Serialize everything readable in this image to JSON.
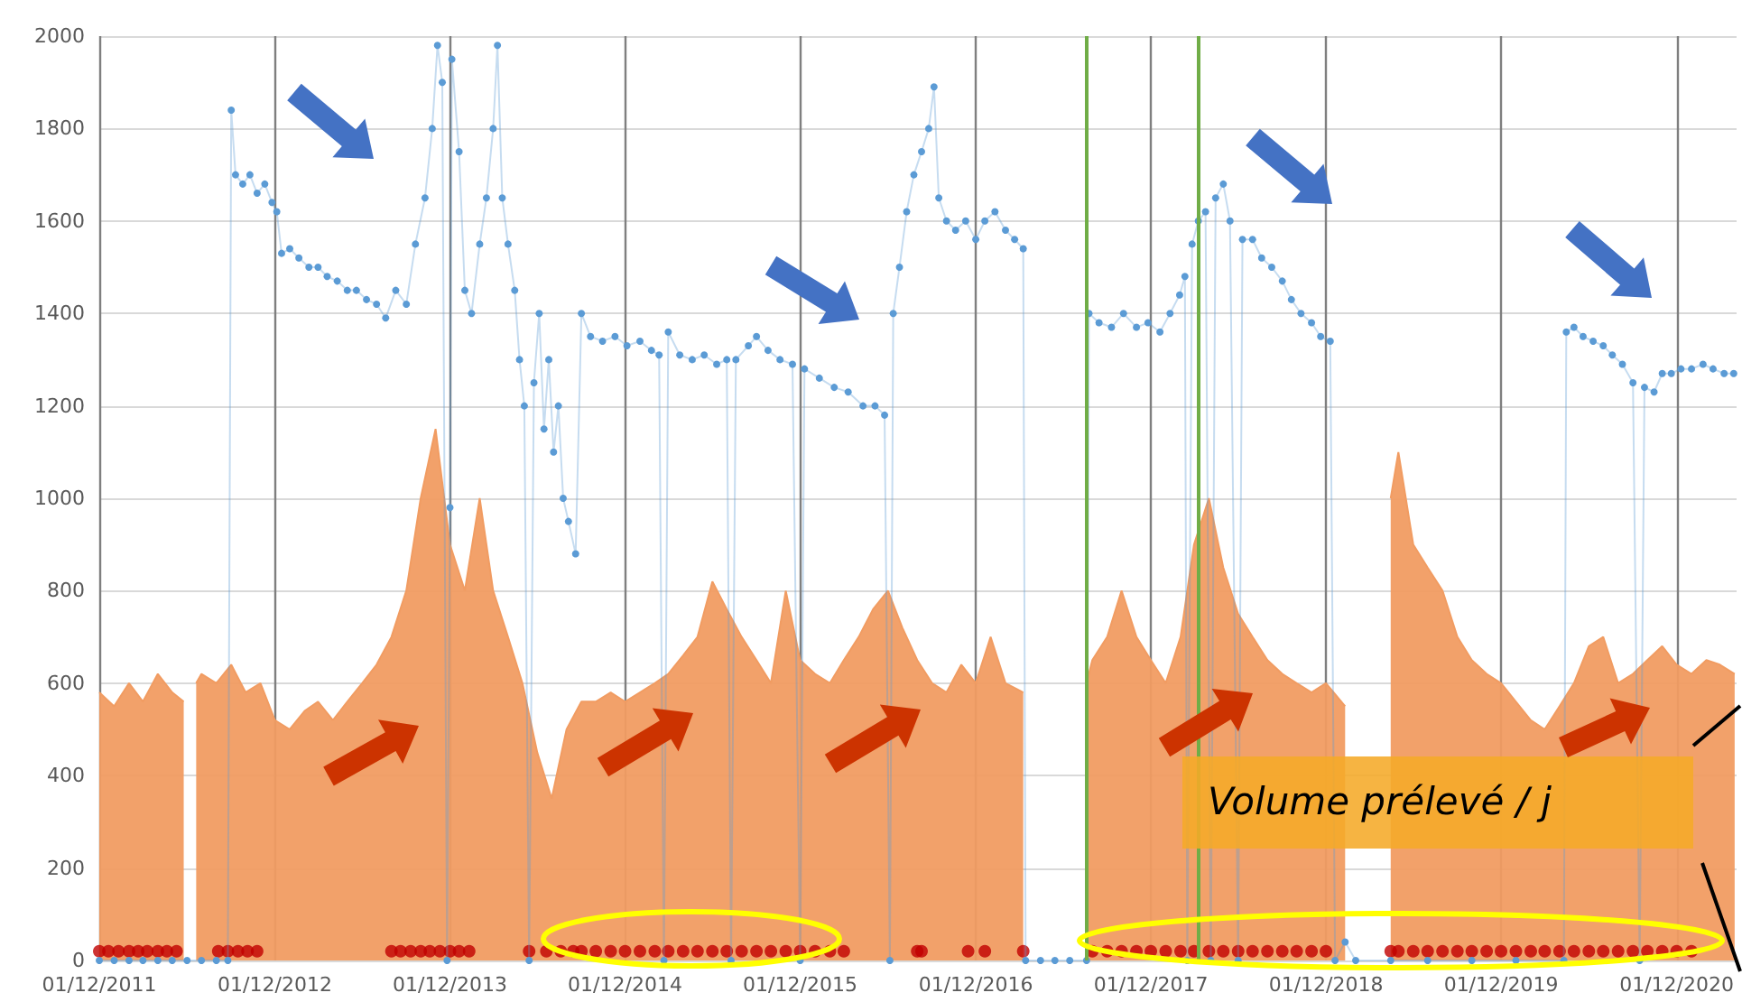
{
  "chart_data": {
    "type": "line",
    "annotations": [
      "Volume prélevé / j"
    ],
    "xlim": [
      "2011-12-01",
      "2021-04-05"
    ],
    "xticks": [
      {
        "value": "2011-12-01",
        "label": "01/12/2011"
      },
      {
        "value": "2012-12-01",
        "label": "01/12/2012"
      },
      {
        "value": "2013-12-01",
        "label": "01/12/2013"
      },
      {
        "value": "2014-12-01",
        "label": "01/12/2014"
      },
      {
        "value": "2015-12-01",
        "label": "01/12/2015"
      },
      {
        "value": "2016-12-01",
        "label": "01/12/2016"
      },
      {
        "value": "2017-12-01",
        "label": "01/12/2017"
      },
      {
        "value": "2018-12-01",
        "label": "01/12/2018"
      },
      {
        "value": "2019-12-01",
        "label": "01/12/2019"
      },
      {
        "value": "2020-12-01",
        "label": "01/12/2020"
      }
    ],
    "ylim": [
      0,
      2000
    ],
    "yticks": [
      0,
      200,
      400,
      600,
      800,
      1000,
      1200,
      1400,
      1600,
      1800,
      2000
    ],
    "grid": true,
    "marker": "circle",
    "ref_lines": [
      {
        "axis": "x",
        "value": "2017-07-20",
        "label": null,
        "color": "#70ad47"
      },
      {
        "axis": "x",
        "value": "2018-03-10",
        "label": null,
        "color": "#70ad47"
      }
    ],
    "series": [
      {
        "type": "area",
        "marker": "none",
        "color": "#f19c62",
        "x": [
          "2011-12-01",
          "2012-01-01",
          "2012-02-01",
          "2012-03-01",
          "2012-04-01",
          "2012-05-01",
          "2012-05-25",
          "2012-06-05",
          "2012-06-20",
          "2012-07-01",
          "2012-08-01",
          "2012-09-01",
          "2012-10-01",
          "2012-11-01",
          "2012-12-01",
          "2013-01-01",
          "2013-02-01",
          "2013-03-01",
          "2013-04-01",
          "2013-05-01",
          "2013-06-01",
          "2013-07-01",
          "2013-08-01",
          "2013-09-01",
          "2013-10-01",
          "2013-11-01",
          "2013-12-01",
          "2014-01-01",
          "2014-02-01",
          "2014-03-01",
          "2014-04-01",
          "2014-05-01",
          "2014-06-01",
          "2014-07-01",
          "2014-08-01",
          "2014-09-01",
          "2014-10-01",
          "2014-11-01",
          "2014-12-01",
          "2015-01-01",
          "2015-02-01",
          "2015-03-01",
          "2015-04-01",
          "2015-05-01",
          "2015-06-01",
          "2015-07-01",
          "2015-08-01",
          "2015-09-01",
          "2015-10-01",
          "2015-11-01",
          "2015-12-01",
          "2016-01-01",
          "2016-02-01",
          "2016-03-01",
          "2016-04-01",
          "2016-05-01",
          "2016-06-01",
          "2016-07-01",
          "2016-08-01",
          "2016-09-01",
          "2016-10-01",
          "2016-11-01",
          "2016-12-01",
          "2017-01-01",
          "2017-02-01",
          "2017-03-10",
          "2017-03-20",
          "2017-07-20",
          "2017-08-01",
          "2017-09-01",
          "2017-10-01",
          "2017-11-01",
          "2017-12-01",
          "2018-01-01",
          "2018-02-01",
          "2018-03-01",
          "2018-04-01",
          "2018-05-01",
          "2018-06-01",
          "2018-07-01",
          "2018-08-01",
          "2018-09-01",
          "2018-10-01",
          "2018-11-01",
          "2018-12-01",
          "2019-01-10",
          "2019-01-20",
          "2019-04-15",
          "2019-05-01",
          "2019-06-01",
          "2019-07-01",
          "2019-08-01",
          "2019-09-01",
          "2019-10-01",
          "2019-11-01",
          "2019-12-01",
          "2020-01-01",
          "2020-02-01",
          "2020-03-01",
          "2020-04-01",
          "2020-05-01",
          "2020-06-01",
          "2020-07-01",
          "2020-08-01",
          "2020-09-01",
          "2020-10-01",
          "2020-11-01",
          "2020-12-01",
          "2021-01-01",
          "2021-02-01",
          "2021-03-01",
          "2021-04-01"
        ],
        "values": [
          580,
          550,
          600,
          560,
          620,
          580,
          560,
          null,
          600,
          620,
          600,
          640,
          580,
          600,
          520,
          500,
          540,
          560,
          520,
          560,
          600,
          640,
          700,
          800,
          1000,
          1150,
          900,
          800,
          1000,
          800,
          700,
          600,
          450,
          350,
          500,
          560,
          560,
          580,
          560,
          580,
          600,
          620,
          660,
          700,
          820,
          760,
          700,
          650,
          600,
          800,
          650,
          620,
          600,
          650,
          700,
          760,
          800,
          720,
          650,
          600,
          580,
          640,
          600,
          700,
          600,
          580,
          null,
          600,
          650,
          700,
          800,
          700,
          650,
          600,
          700,
          900,
          1000,
          850,
          750,
          700,
          650,
          620,
          600,
          580,
          600,
          550,
          null,
          1000,
          1100,
          900,
          850,
          800,
          700,
          650,
          620,
          600,
          560,
          520,
          500,
          550,
          600,
          680,
          700,
          600,
          620,
          650,
          680,
          640,
          620,
          650,
          640,
          620
        ]
      },
      {
        "color": "#5b9bd5",
        "x": [
          "2011-12-01",
          "2012-01-01",
          "2012-02-01",
          "2012-03-01",
          "2012-04-01",
          "2012-05-01",
          "2012-06-01",
          "2012-07-01",
          "2012-08-01",
          "2012-08-25",
          "2012-09-01",
          "2012-09-10",
          "2012-09-25",
          "2012-10-10",
          "2012-10-25",
          "2012-11-10",
          "2012-11-25",
          "2012-12-05",
          "2012-12-15",
          "2013-01-01",
          "2013-01-20",
          "2013-02-10",
          "2013-03-01",
          "2013-03-20",
          "2013-04-10",
          "2013-05-01",
          "2013-05-20",
          "2013-06-10",
          "2013-07-01",
          "2013-07-20",
          "2013-08-10",
          "2013-09-01",
          "2013-09-20",
          "2013-10-10",
          "2013-10-25",
          "2013-11-05",
          "2013-11-15",
          "2013-11-25",
          "2013-12-01",
          "2013-12-05",
          "2013-12-20",
          "2014-01-01",
          "2014-01-15",
          "2014-02-01",
          "2014-02-15",
          "2014-03-01",
          "2014-03-10",
          "2014-03-20",
          "2014-04-01",
          "2014-04-15",
          "2014-04-25",
          "2014-05-05",
          "2014-05-15",
          "2014-05-25",
          "2014-06-05",
          "2014-06-15",
          "2014-06-25",
          "2014-07-05",
          "2014-07-15",
          "2014-07-25",
          "2014-08-05",
          "2014-08-20",
          "2014-09-01",
          "2014-09-20",
          "2014-10-15",
          "2014-11-10",
          "2014-12-05",
          "2015-01-01",
          "2015-01-25",
          "2015-02-10",
          "2015-02-20",
          "2015-03-01",
          "2015-03-25",
          "2015-04-20",
          "2015-05-15",
          "2015-06-10",
          "2015-07-01",
          "2015-07-10",
          "2015-07-20",
          "2015-08-15",
          "2015-09-01",
          "2015-09-25",
          "2015-10-20",
          "2015-11-15",
          "2015-12-01",
          "2015-12-10",
          "2016-01-10",
          "2016-02-10",
          "2016-03-10",
          "2016-04-10",
          "2016-05-05",
          "2016-05-25",
          "2016-06-05",
          "2016-06-12",
          "2016-06-25",
          "2016-07-10",
          "2016-07-25",
          "2016-08-10",
          "2016-08-25",
          "2016-09-05",
          "2016-09-15",
          "2016-10-01",
          "2016-10-20",
          "2016-11-10",
          "2016-12-01",
          "2016-12-20",
          "2017-01-10",
          "2017-02-01",
          "2017-02-20",
          "2017-03-10",
          "2017-03-15",
          "2017-04-15",
          "2017-05-15",
          "2017-06-15",
          "2017-07-20",
          "2017-07-25",
          "2017-08-15",
          "2017-09-10",
          "2017-10-05",
          "2017-11-01",
          "2017-11-25",
          "2017-12-20",
          "2018-01-10",
          "2018-01-30",
          "2018-02-10",
          "2018-02-15",
          "2018-02-25",
          "2018-03-10",
          "2018-03-25",
          "2018-04-05",
          "2018-04-15",
          "2018-05-01",
          "2018-05-15",
          "2018-06-01",
          "2018-06-10",
          "2018-07-01",
          "2018-07-20",
          "2018-08-10",
          "2018-09-01",
          "2018-09-20",
          "2018-10-10",
          "2018-11-01",
          "2018-11-20",
          "2018-12-10",
          "2018-12-20",
          "2019-01-10",
          "2019-02-01",
          "2019-04-15",
          "2019-07-01",
          "2019-10-01",
          "2020-01-01",
          "2020-04-10",
          "2020-04-15",
          "2020-05-01",
          "2020-05-20",
          "2020-06-10",
          "2020-07-01",
          "2020-07-20",
          "2020-08-10",
          "2020-09-01",
          "2020-09-15",
          "2020-09-25",
          "2020-10-15",
          "2020-11-01",
          "2020-11-20",
          "2020-12-10",
          "2021-01-01",
          "2021-01-25",
          "2021-02-15",
          "2021-03-10",
          "2021-03-30"
        ],
        "values": [
          0,
          0,
          0,
          0,
          0,
          0,
          0,
          0,
          0,
          0,
          1840,
          1700,
          1680,
          1700,
          1660,
          1680,
          1640,
          1620,
          1530,
          1540,
          1520,
          1500,
          1500,
          1480,
          1470,
          1450,
          1450,
          1430,
          1420,
          1390,
          1450,
          1420,
          1550,
          1650,
          1800,
          1980,
          1900,
          0,
          980,
          1950,
          1750,
          1450,
          1400,
          1550,
          1650,
          1800,
          1980,
          1650,
          1550,
          1450,
          1300,
          1200,
          0,
          1250,
          1400,
          1150,
          1300,
          1100,
          1200,
          1000,
          950,
          880,
          1400,
          1350,
          1340,
          1350,
          1330,
          1340,
          1320,
          1310,
          0,
          1360,
          1310,
          1300,
          1310,
          1290,
          1300,
          0,
          1300,
          1330,
          1350,
          1320,
          1300,
          1290,
          0,
          1280,
          1260,
          1240,
          1230,
          1200,
          1200,
          1180,
          0,
          1400,
          1500,
          1620,
          1700,
          1750,
          1800,
          1890,
          1650,
          1600,
          1580,
          1600,
          1560,
          1600,
          1620,
          1580,
          1560,
          1540,
          0,
          0,
          0,
          0,
          0,
          1400,
          1380,
          1370,
          1400,
          1370,
          1380,
          1360,
          1400,
          1440,
          1480,
          0,
          1550,
          1600,
          1620,
          0,
          1650,
          1680,
          1600,
          0,
          1560,
          1560,
          1520,
          1500,
          1470,
          1430,
          1400,
          1380,
          1350,
          1340,
          0,
          40,
          0,
          0,
          0,
          0,
          0,
          0,
          1360,
          1370,
          1350,
          1340,
          1330,
          1310,
          1290,
          1250,
          0,
          1240,
          1230,
          1270,
          1270,
          1280,
          1280,
          1290,
          1280,
          1270,
          1270
        ]
      },
      {
        "type": "scatter",
        "color": "#c00000",
        "x": [
          "2011-12-01",
          "2011-12-20",
          "2012-01-10",
          "2012-02-01",
          "2012-02-20",
          "2012-03-10",
          "2012-04-01",
          "2012-04-20",
          "2012-05-10",
          "2012-08-05",
          "2012-08-25",
          "2012-09-15",
          "2012-10-05",
          "2012-10-25",
          "2013-08-01",
          "2013-08-20",
          "2013-09-10",
          "2013-10-01",
          "2013-10-20",
          "2013-11-10",
          "2013-12-01",
          "2013-12-20",
          "2014-01-10",
          "2014-05-15",
          "2014-06-20",
          "2014-07-20",
          "2014-08-15",
          "2014-09-01",
          "2014-10-01",
          "2014-11-01",
          "2014-12-01",
          "2015-01-01",
          "2015-02-01",
          "2015-03-01",
          "2015-04-01",
          "2015-05-01",
          "2015-06-01",
          "2015-07-01",
          "2015-08-01",
          "2015-09-01",
          "2015-10-01",
          "2015-11-01",
          "2015-12-01",
          "2016-01-01",
          "2016-02-01",
          "2016-03-01",
          "2016-08-01",
          "2016-08-10",
          "2016-11-15",
          "2016-12-20",
          "2017-03-10",
          "2017-08-01",
          "2017-09-01",
          "2017-10-01",
          "2017-11-01",
          "2017-12-01",
          "2018-01-01",
          "2018-02-01",
          "2018-03-01",
          "2018-04-01",
          "2018-05-01",
          "2018-06-01",
          "2018-07-01",
          "2018-08-01",
          "2018-09-01",
          "2018-10-01",
          "2018-11-01",
          "2018-12-01",
          "2019-04-15",
          "2019-05-01",
          "2019-06-01",
          "2019-07-01",
          "2019-08-01",
          "2019-09-01",
          "2019-10-01",
          "2019-11-01",
          "2019-12-01",
          "2020-01-01",
          "2020-02-01",
          "2020-03-01",
          "2020-04-01",
          "2020-05-01",
          "2020-06-01",
          "2020-07-01",
          "2020-08-01",
          "2020-09-01",
          "2020-10-01",
          "2020-11-01",
          "2020-12-01",
          "2021-01-01"
        ],
        "values": [
          20,
          20,
          20,
          20,
          20,
          20,
          20,
          20,
          20,
          20,
          20,
          20,
          20,
          20,
          20,
          20,
          20,
          20,
          20,
          20,
          20,
          20,
          20,
          20,
          20,
          20,
          20,
          20,
          20,
          20,
          20,
          20,
          20,
          20,
          20,
          20,
          20,
          20,
          20,
          20,
          20,
          20,
          20,
          20,
          20,
          20,
          20,
          20,
          20,
          20,
          20,
          20,
          20,
          20,
          20,
          20,
          20,
          20,
          20,
          20,
          20,
          20,
          20,
          20,
          20,
          20,
          20,
          20,
          20,
          20,
          20,
          20,
          20,
          20,
          20,
          20,
          20,
          20,
          20,
          20,
          20,
          20,
          20,
          20,
          20,
          20,
          20,
          20,
          20,
          20
        ]
      }
    ]
  }
}
